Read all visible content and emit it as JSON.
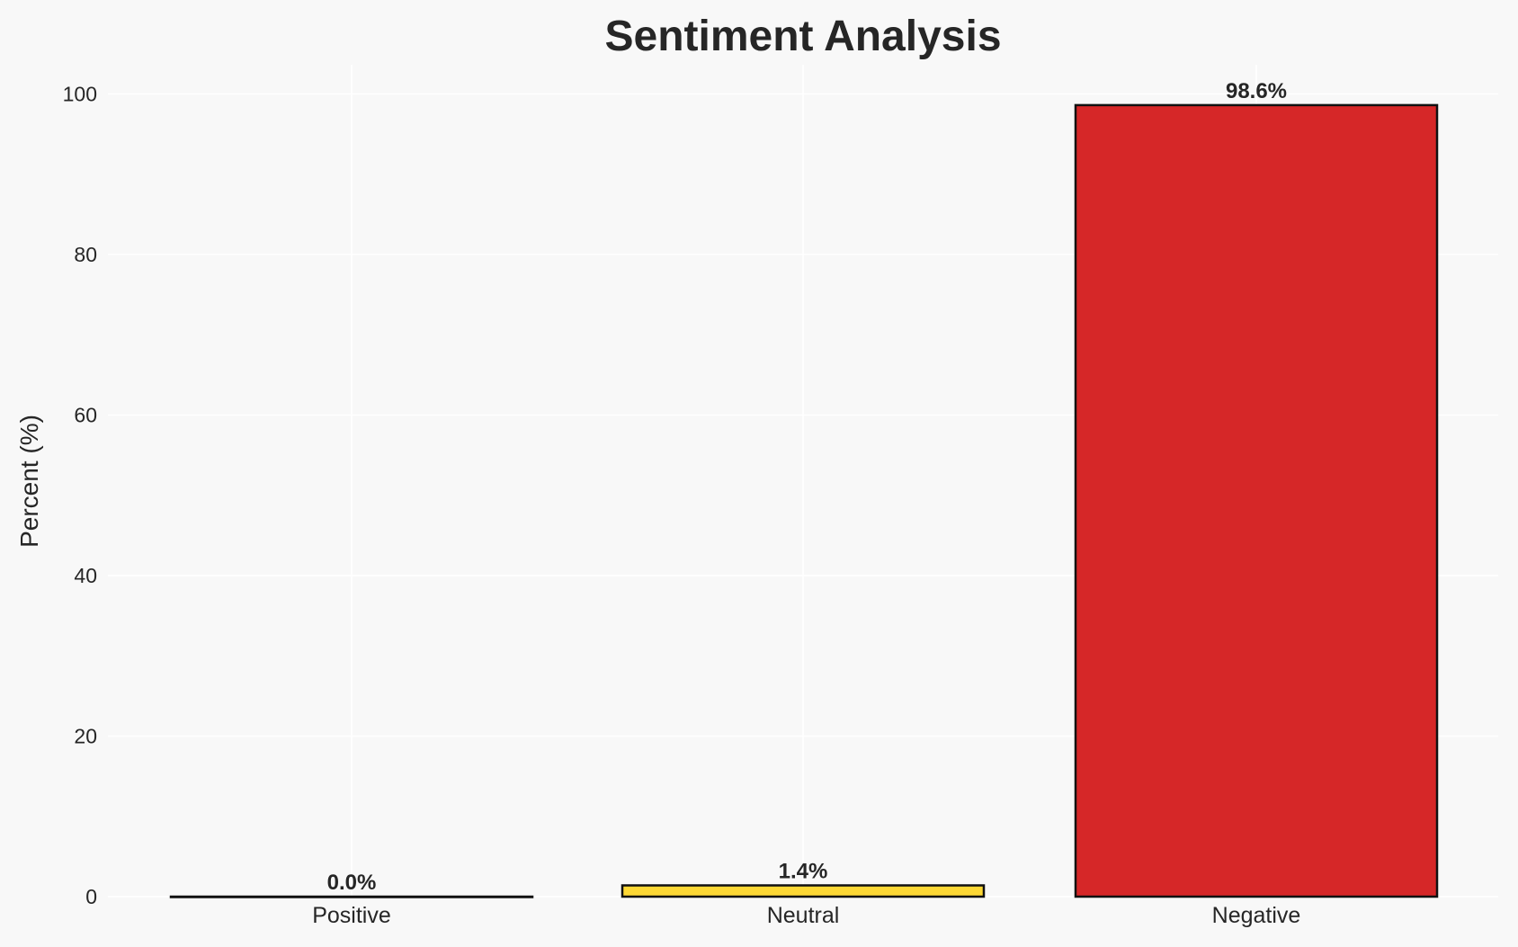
{
  "chart_data": {
    "type": "bar",
    "title": "Sentiment Analysis",
    "xlabel": "",
    "ylabel": "Percent (%)",
    "categories": [
      "Positive",
      "Neutral",
      "Negative"
    ],
    "values": [
      0.0,
      1.4,
      98.6
    ],
    "data_labels": [
      "0.0%",
      "1.4%",
      "98.6%"
    ],
    "colors": [
      "#2ca02c",
      "#fdd835",
      "#d62728"
    ],
    "edge_color": "#111111",
    "ylim": [
      0,
      104
    ],
    "yticks": [
      0,
      20,
      40,
      60,
      80,
      100
    ],
    "grid": true,
    "background": "#f8f8f8"
  }
}
